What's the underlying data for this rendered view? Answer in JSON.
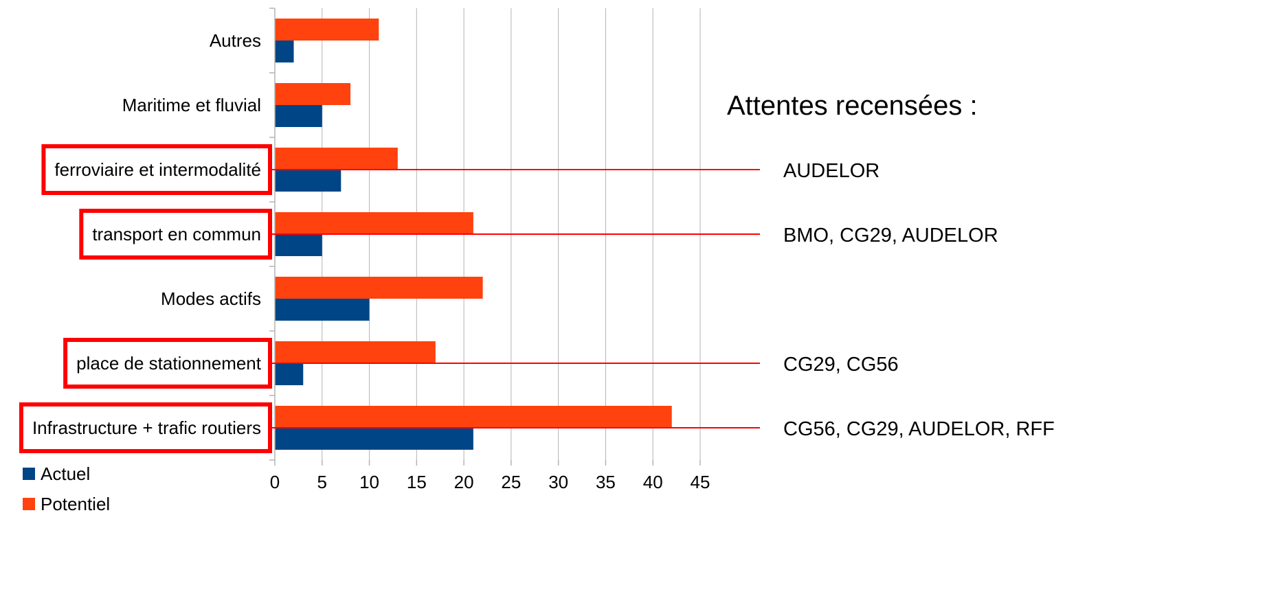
{
  "chart_data": {
    "type": "bar",
    "orientation": "horizontal",
    "categories": [
      "Infrastructure + trafic routiers",
      "place de stationnement",
      "Modes actifs",
      "transport en commun",
      "ferroviaire et intermodalité",
      "Maritime et fluvial",
      "Autres"
    ],
    "series": [
      {
        "name": "Actuel",
        "color": "#004586",
        "values": [
          21,
          3,
          10,
          5,
          7,
          5,
          2
        ]
      },
      {
        "name": "Potentiel",
        "color": "#ff420e",
        "values": [
          42,
          17,
          22,
          21,
          13,
          8,
          11
        ]
      }
    ],
    "xlim": [
      0,
      45
    ],
    "xticks": [
      "0",
      "5",
      "10",
      "15",
      "20",
      "25",
      "30",
      "35",
      "40",
      "45"
    ],
    "grid": "vertical",
    "legend_position": "bottom-left",
    "highlight_color": "#ff0000",
    "highlighted_categories": [
      "Infrastructure + trafic routiers",
      "place de stationnement",
      "transport en commun",
      "ferroviaire et intermodalité"
    ],
    "annotations": {
      "heading": "Attentes recensées :",
      "items": [
        {
          "category": "ferroviaire et intermodalité",
          "text": "AUDELOR"
        },
        {
          "category": "transport en commun",
          "text": "BMO, CG29, AUDELOR"
        },
        {
          "category": "place de stationnement",
          "text": "CG29, CG56"
        },
        {
          "category": "Infrastructure + trafic routiers",
          "text": "CG56, CG29, AUDELOR, RFF"
        }
      ]
    }
  }
}
